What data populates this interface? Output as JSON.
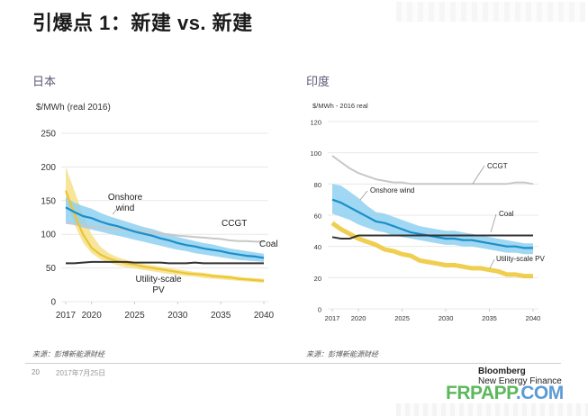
{
  "page": {
    "title": "引爆点 1：新建 vs. 新建",
    "page_number": "20",
    "date": "2017年7月25日",
    "brand_line1": "Bloomberg",
    "brand_line2": "New Energy Finance",
    "site_part1": "FRPAPP",
    "site_part2": ".COM",
    "colors": {
      "wind_band": "#8fd0f0",
      "wind_line": "#1a8fc9",
      "pv_band": "#f6e08a",
      "pv_line": "#ecc531",
      "ccgt_line": "#c8c8c8",
      "coal_line": "#333333",
      "site_green": "#5cb85c",
      "site_blue": "#5b9bd5"
    }
  },
  "chart_data": [
    {
      "type": "line",
      "region": "日本",
      "title": "日本",
      "ylabel": "$/MWh (real 2016)",
      "xlabel": "",
      "source": "来源：彭博新能源财经",
      "ylim": [
        0,
        250
      ],
      "xlim": [
        2017,
        2040
      ],
      "yticks": [
        0,
        50,
        100,
        150,
        200,
        250
      ],
      "xticks": [
        2017,
        2020,
        2025,
        2030,
        2035,
        2040
      ],
      "grid": true,
      "x": [
        2017,
        2018,
        2019,
        2020,
        2021,
        2022,
        2023,
        2024,
        2025,
        2026,
        2027,
        2028,
        2029,
        2030,
        2031,
        2032,
        2033,
        2034,
        2035,
        2036,
        2037,
        2038,
        2039,
        2040
      ],
      "series": [
        {
          "name": "Onshore wind",
          "label": "Onshore\nwind",
          "values": [
            140,
            133,
            127,
            124,
            119,
            115,
            112,
            108,
            104,
            101,
            98,
            94,
            91,
            87,
            84,
            82,
            79,
            77,
            75,
            72,
            70,
            68,
            67,
            65
          ],
          "band_upper": [
            155,
            147,
            142,
            138,
            132,
            127,
            123,
            119,
            115,
            111,
            108,
            104,
            100,
            96,
            93,
            90,
            87,
            85,
            82,
            79,
            77,
            75,
            73,
            71
          ],
          "band_lower": [
            118,
            114,
            110,
            107,
            104,
            101,
            98,
            95,
            92,
            89,
            86,
            83,
            80,
            77,
            75,
            72,
            70,
            68,
            66,
            64,
            62,
            61,
            60,
            59
          ]
        },
        {
          "name": "Utility-scale PV",
          "label": "Utility-scale\nPV",
          "values": [
            165,
            130,
            100,
            80,
            70,
            64,
            60,
            57,
            55,
            52,
            50,
            48,
            46,
            44,
            42,
            41,
            40,
            38,
            37,
            36,
            34,
            33,
            32,
            31
          ],
          "band_upper": [
            200,
            165,
            130,
            100,
            82,
            72,
            66,
            62,
            59,
            56,
            54,
            52,
            50,
            48,
            46,
            44,
            43,
            41,
            40,
            39,
            37,
            36,
            35,
            34
          ],
          "band_lower": [
            150,
            115,
            88,
            72,
            63,
            58,
            54,
            51,
            49,
            47,
            45,
            43,
            41,
            40,
            38,
            37,
            35,
            34,
            33,
            32,
            31,
            30,
            29,
            28
          ]
        },
        {
          "name": "CCGT",
          "label": "CCGT",
          "values": [
            117,
            115,
            113,
            111,
            110,
            109,
            108,
            107,
            105,
            104,
            103,
            101,
            100,
            98,
            97,
            96,
            95,
            94,
            93,
            91,
            90,
            90,
            89,
            89
          ]
        },
        {
          "name": "Coal",
          "label": "Coal",
          "values": [
            57,
            57,
            58,
            59,
            59,
            59,
            59,
            59,
            58,
            58,
            58,
            58,
            57,
            57,
            57,
            58,
            57,
            57,
            57,
            57,
            57,
            57,
            57,
            57
          ]
        }
      ]
    },
    {
      "type": "line",
      "region": "印度",
      "title": "印度",
      "ylabel": "$/MWh - 2016 real",
      "xlabel": "",
      "source": "来源：彭博新能源财经",
      "ylim": [
        0,
        120
      ],
      "xlim": [
        2017,
        2040
      ],
      "yticks": [
        0,
        20,
        40,
        60,
        80,
        100,
        120
      ],
      "xticks": [
        2017,
        2020,
        2025,
        2030,
        2035,
        2040
      ],
      "grid": true,
      "x": [
        2017,
        2018,
        2019,
        2020,
        2021,
        2022,
        2023,
        2024,
        2025,
        2026,
        2027,
        2028,
        2029,
        2030,
        2031,
        2032,
        2033,
        2034,
        2035,
        2036,
        2037,
        2038,
        2039,
        2040
      ],
      "series": [
        {
          "name": "Onshore wind",
          "label": "Onshore wind",
          "values": [
            70,
            68,
            65,
            62,
            59,
            56,
            55,
            53,
            51,
            49,
            48,
            47,
            46,
            45,
            45,
            44,
            44,
            43,
            42,
            41,
            40,
            40,
            39,
            39
          ],
          "band_upper": [
            80,
            79,
            75,
            71,
            66,
            62,
            61,
            59,
            57,
            55,
            53,
            52,
            51,
            50,
            50,
            49,
            48,
            47,
            46,
            45,
            44,
            43,
            42,
            42
          ],
          "band_lower": [
            61,
            59,
            57,
            54,
            52,
            50,
            49,
            47,
            46,
            45,
            44,
            43,
            42,
            41,
            41,
            40,
            40,
            39,
            38,
            37,
            36,
            36,
            35,
            35
          ]
        },
        {
          "name": "Utility-scale PV",
          "label": "Utility-scale PV",
          "values": [
            55,
            51,
            48,
            45,
            43,
            41,
            38,
            37,
            35,
            34,
            31,
            30,
            29,
            28,
            28,
            27,
            26,
            26,
            25,
            24,
            22,
            22,
            21,
            21
          ]
        },
        {
          "name": "CCGT",
          "label": "CCGT",
          "values": [
            98,
            94,
            90,
            87,
            85,
            83,
            82,
            81,
            81,
            80,
            80,
            80,
            80,
            80,
            80,
            80,
            80,
            80,
            80,
            80,
            80,
            81,
            81,
            80
          ]
        },
        {
          "name": "Coal",
          "label": "Coal",
          "values": [
            46,
            45,
            45,
            47,
            47,
            47,
            47,
            47,
            47,
            47,
            47,
            47,
            47,
            47,
            47,
            47,
            47,
            47,
            47,
            47,
            47,
            47,
            47,
            47
          ]
        }
      ]
    }
  ]
}
